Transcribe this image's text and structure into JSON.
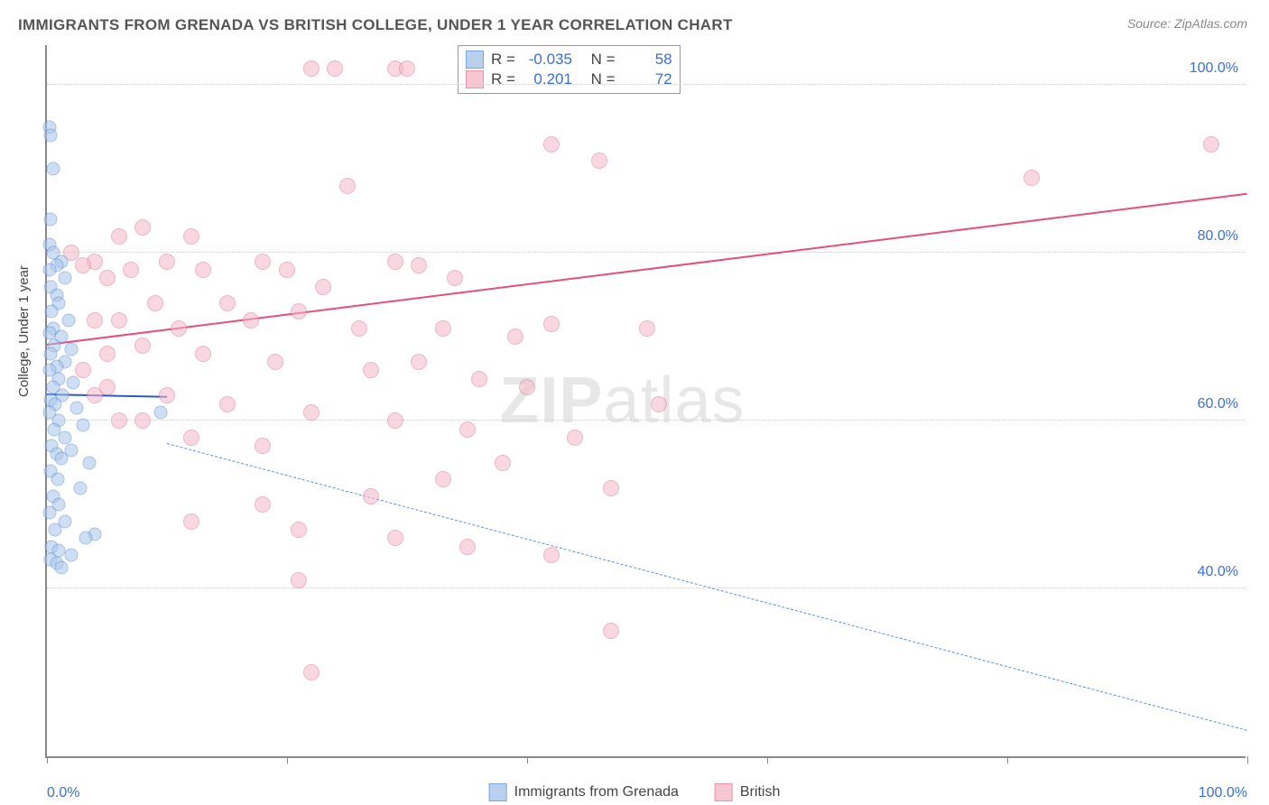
{
  "title": "IMMIGRANTS FROM GRENADA VS BRITISH COLLEGE, UNDER 1 YEAR CORRELATION CHART",
  "source_prefix": "Source: ",
  "source_link": "ZipAtlas.com",
  "watermark_bold": "ZIP",
  "watermark_light": "atlas",
  "chart": {
    "type": "scatter",
    "ylabel": "College, Under 1 year",
    "xlim": [
      0,
      100
    ],
    "ylim": [
      20,
      105
    ],
    "xticks": [
      0,
      20,
      40,
      60,
      80,
      100
    ],
    "xtick_labels": {
      "0": "0.0%",
      "100": "100.0%"
    },
    "yticks": [
      40,
      60,
      80,
      100
    ],
    "ytick_labels": [
      "40.0%",
      "60.0%",
      "80.0%",
      "100.0%"
    ],
    "grid_color": "#cccccc",
    "axis_color": "#888888",
    "background_color": "#ffffff",
    "label_color": "#3b6fd6",
    "series": [
      {
        "name": "Immigrants from Grenada",
        "marker_fill": "#a8c5ea",
        "marker_stroke": "#5b8fd6",
        "marker_size": 15,
        "fill_opacity": 0.55,
        "R": "-0.035",
        "N": "58",
        "trend": {
          "color": "#2a5bc4",
          "width": 2,
          "dash": false,
          "y_at_x0": 63,
          "y_at_x100": 60,
          "x_end": 10
        },
        "trend_ext": {
          "color": "#5b8fd6",
          "width": 1,
          "dash": true,
          "y_at_x0": 61,
          "y_at_x100": 23
        },
        "points": [
          [
            0.2,
            95
          ],
          [
            0.3,
            94
          ],
          [
            0.5,
            90
          ],
          [
            0.3,
            84
          ],
          [
            0.2,
            81
          ],
          [
            0.5,
            80
          ],
          [
            1.2,
            79
          ],
          [
            0.8,
            78.5
          ],
          [
            0.2,
            78
          ],
          [
            1.5,
            77
          ],
          [
            0.3,
            76
          ],
          [
            0.8,
            75
          ],
          [
            1.0,
            74
          ],
          [
            0.4,
            73
          ],
          [
            1.8,
            72
          ],
          [
            0.5,
            71
          ],
          [
            0.2,
            70.5
          ],
          [
            1.2,
            70
          ],
          [
            0.6,
            69
          ],
          [
            2.0,
            68.5
          ],
          [
            0.3,
            68
          ],
          [
            1.5,
            67
          ],
          [
            0.8,
            66.5
          ],
          [
            0.2,
            66
          ],
          [
            1.0,
            65
          ],
          [
            2.2,
            64.5
          ],
          [
            0.5,
            64
          ],
          [
            1.3,
            63
          ],
          [
            0.3,
            62.5
          ],
          [
            0.7,
            62
          ],
          [
            2.5,
            61.5
          ],
          [
            0.2,
            61
          ],
          [
            1.0,
            60
          ],
          [
            3.0,
            59.5
          ],
          [
            0.6,
            59
          ],
          [
            1.5,
            58
          ],
          [
            0.4,
            57
          ],
          [
            2.0,
            56.5
          ],
          [
            0.8,
            56
          ],
          [
            1.2,
            55.5
          ],
          [
            3.5,
            55
          ],
          [
            0.3,
            54
          ],
          [
            0.9,
            53
          ],
          [
            2.8,
            52
          ],
          [
            0.5,
            51
          ],
          [
            1.0,
            50
          ],
          [
            0.2,
            49
          ],
          [
            1.5,
            48
          ],
          [
            0.7,
            47
          ],
          [
            4.0,
            46.5
          ],
          [
            3.2,
            46
          ],
          [
            0.4,
            45
          ],
          [
            1.0,
            44.5
          ],
          [
            2.0,
            44
          ],
          [
            0.3,
            43.5
          ],
          [
            0.8,
            43
          ],
          [
            1.2,
            42.5
          ],
          [
            9.5,
            61
          ]
        ]
      },
      {
        "name": "British",
        "marker_fill": "#f5b8c8",
        "marker_stroke": "#e07a9a",
        "marker_size": 18,
        "fill_opacity": 0.55,
        "R": "0.201",
        "N": "72",
        "trend": {
          "color": "#e54f7a",
          "width": 2.5,
          "dash": false,
          "y_at_x0": 69,
          "y_at_x100": 87,
          "x_end": 100
        },
        "points": [
          [
            22,
            102
          ],
          [
            24,
            102
          ],
          [
            29,
            102
          ],
          [
            30,
            102
          ],
          [
            42,
            93
          ],
          [
            46,
            91
          ],
          [
            97,
            93
          ],
          [
            82,
            89
          ],
          [
            25,
            88
          ],
          [
            6,
            82
          ],
          [
            8,
            83
          ],
          [
            12,
            82
          ],
          [
            2,
            80
          ],
          [
            4,
            79
          ],
          [
            3,
            78.5
          ],
          [
            7,
            78
          ],
          [
            5,
            77
          ],
          [
            10,
            79
          ],
          [
            13,
            78
          ],
          [
            18,
            79
          ],
          [
            20,
            78
          ],
          [
            29,
            79
          ],
          [
            31,
            78.5
          ],
          [
            34,
            77
          ],
          [
            23,
            76
          ],
          [
            9,
            74
          ],
          [
            15,
            74
          ],
          [
            21,
            73
          ],
          [
            4,
            72
          ],
          [
            6,
            72
          ],
          [
            11,
            71
          ],
          [
            17,
            72
          ],
          [
            26,
            71
          ],
          [
            33,
            71
          ],
          [
            42,
            71.5
          ],
          [
            39,
            70
          ],
          [
            8,
            69
          ],
          [
            5,
            68
          ],
          [
            13,
            68
          ],
          [
            19,
            67
          ],
          [
            27,
            66
          ],
          [
            31,
            67
          ],
          [
            36,
            65
          ],
          [
            40,
            64
          ],
          [
            5,
            64
          ],
          [
            10,
            63
          ],
          [
            15,
            62
          ],
          [
            22,
            61
          ],
          [
            29,
            60
          ],
          [
            35,
            59
          ],
          [
            8,
            60
          ],
          [
            12,
            58
          ],
          [
            18,
            57
          ],
          [
            3,
            66
          ],
          [
            4,
            63
          ],
          [
            6,
            60
          ],
          [
            51,
            62
          ],
          [
            50,
            71
          ],
          [
            44,
            58
          ],
          [
            38,
            55
          ],
          [
            33,
            53
          ],
          [
            27,
            51
          ],
          [
            18,
            50
          ],
          [
            12,
            48
          ],
          [
            21,
            47
          ],
          [
            29,
            46
          ],
          [
            35,
            45
          ],
          [
            42,
            44
          ],
          [
            21,
            41
          ],
          [
            22,
            30
          ],
          [
            47,
            35
          ],
          [
            47,
            52
          ]
        ]
      }
    ],
    "legend_top": {
      "R_label": "R =",
      "N_label": "N ="
    }
  }
}
